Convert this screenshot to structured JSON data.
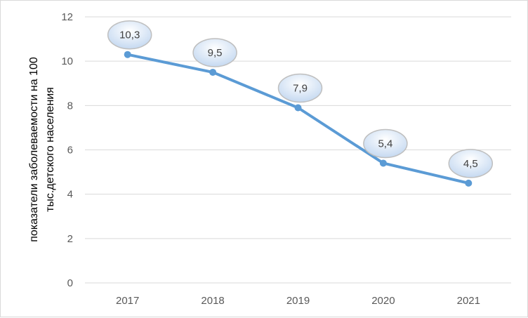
{
  "chart_data": {
    "type": "line",
    "title": "",
    "xlabel": "",
    "ylabel_lines": [
      "показатели заболеваемости на 100",
      "тыс.детского населения"
    ],
    "categories": [
      "2017",
      "2018",
      "2019",
      "2020",
      "2021"
    ],
    "series": [
      {
        "values": [
          10.3,
          9.5,
          7.9,
          5.4,
          4.5
        ],
        "labels": [
          "10,3",
          "9,5",
          "7,9",
          "5,4",
          "4,5"
        ]
      }
    ],
    "ylim": [
      0,
      12
    ],
    "yticks": [
      0,
      2,
      4,
      6,
      8,
      10,
      12
    ],
    "ytick_labels": [
      "0",
      "2",
      "4",
      "6",
      "8",
      "10",
      "12"
    ],
    "grid": "horizontal",
    "legend": "none",
    "colors": {
      "line": "#5b9bd5",
      "grid": "#d9d9d9",
      "label_bubble": "#dbe7f5",
      "label_border": "#bfbfbf"
    }
  }
}
